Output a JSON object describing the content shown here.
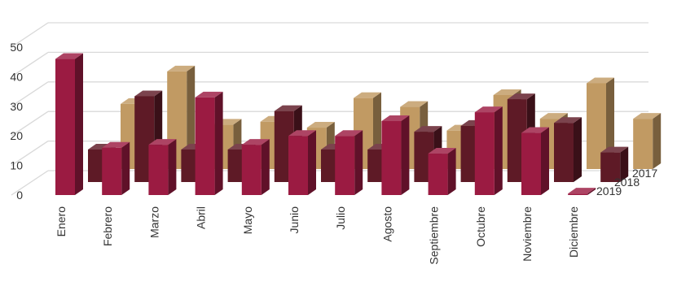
{
  "chart_data": {
    "type": "bar",
    "categories": [
      "Enero",
      "Febrero",
      "Marzo",
      "Abril",
      "Mayo",
      "Junio",
      "Julio",
      "Agosto",
      "Septiembre",
      "Octubre",
      "Noviembre",
      "Diciembre"
    ],
    "series": [
      {
        "name": "2019",
        "values": [
          46,
          16,
          17,
          33,
          17,
          20,
          20,
          25,
          14,
          28,
          21,
          0.5
        ],
        "color": "#9b1b42"
      },
      {
        "name": "2018",
        "values": [
          11,
          29,
          11,
          11,
          24,
          11,
          11,
          17,
          19,
          28,
          20,
          10
        ],
        "color": "#5e1a26"
      },
      {
        "name": "2017",
        "values": [
          22,
          33,
          15,
          16,
          14,
          24,
          21,
          13,
          25,
          17,
          29,
          17
        ],
        "color": "#c19a63"
      }
    ],
    "y_ticks": [
      0,
      10,
      20,
      30,
      40,
      50
    ],
    "ylim": [
      0,
      50
    ],
    "grid": true,
    "legend_placement": "right, series labels at depth"
  }
}
